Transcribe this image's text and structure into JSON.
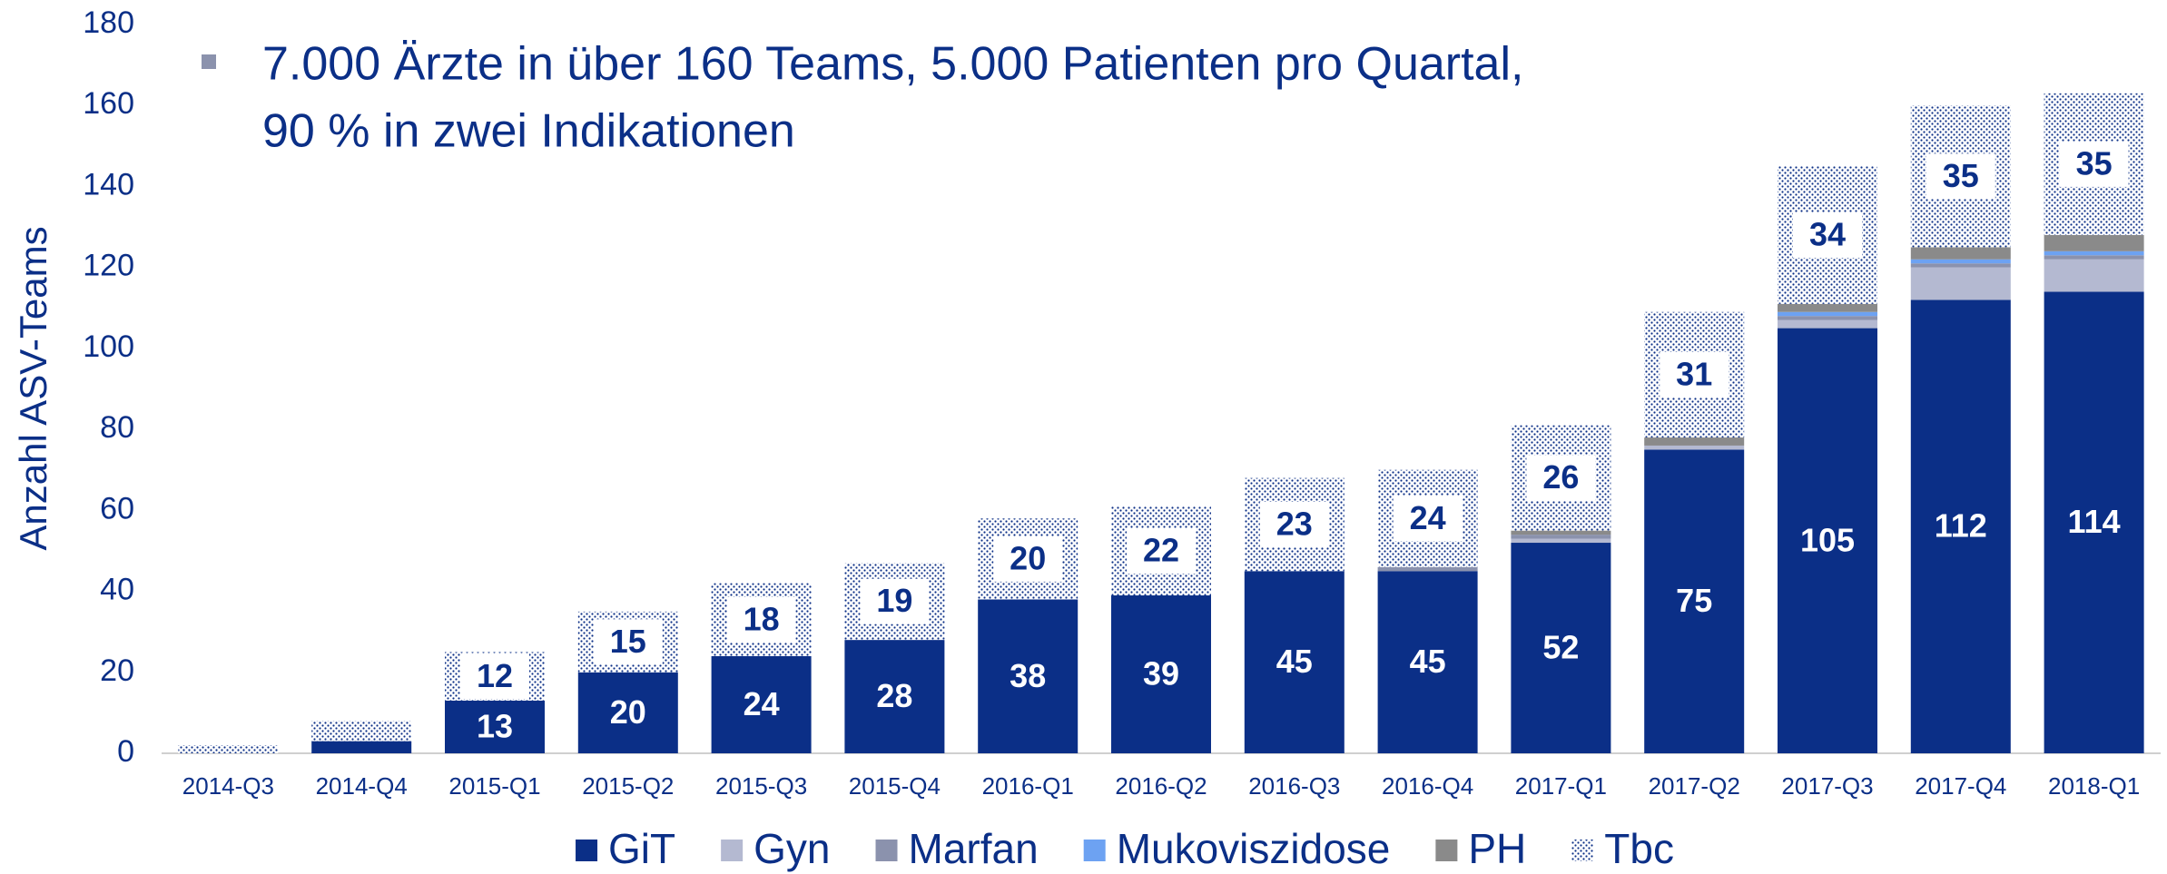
{
  "chart_data": {
    "type": "stacked_bar",
    "annotation": [
      "7.000 Ärzte in über 160 Teams, 5.000 Patienten pro Quartal,",
      "90 % in zwei Indikationen"
    ],
    "y_label": "Anzahl ASV-Teams",
    "categories": [
      "2014-Q3",
      "2014-Q4",
      "2015-Q1",
      "2015-Q2",
      "2015-Q3",
      "2015-Q4",
      "2016-Q1",
      "2016-Q2",
      "2016-Q3",
      "2016-Q4",
      "2017-Q1",
      "2017-Q2",
      "2017-Q3",
      "2017-Q4",
      "2018-Q1"
    ],
    "series": [
      {
        "name": "GiT",
        "color": "#0b2f87",
        "values": [
          0,
          3,
          13,
          20,
          24,
          28,
          38,
          39,
          45,
          45,
          52,
          75,
          105,
          112,
          114
        ],
        "value_labels": [
          null,
          null,
          "13",
          "20",
          "24",
          "28",
          "38",
          "39",
          "45",
          "45",
          "52",
          "75",
          "105",
          "112",
          "114"
        ]
      },
      {
        "name": "Gyn",
        "color": "#b4b9d1",
        "values": [
          0,
          0,
          0,
          0,
          0,
          0,
          0,
          0,
          0,
          0,
          1,
          1,
          2,
          8,
          8
        ]
      },
      {
        "name": "Marfan",
        "color": "#8b92ad",
        "values": [
          0,
          0,
          0,
          0,
          0,
          0,
          0,
          0,
          0,
          1,
          1,
          0,
          1,
          1,
          1
        ]
      },
      {
        "name": "Mukoviszidose",
        "color": "#6da2f2",
        "values": [
          0,
          0,
          0,
          0,
          0,
          0,
          0,
          0,
          0,
          0,
          0,
          0,
          1,
          1,
          1
        ]
      },
      {
        "name": "PH",
        "color": "#8a8a8a",
        "values": [
          0,
          0,
          0,
          0,
          0,
          0,
          0,
          0,
          0,
          0,
          1,
          2,
          2,
          3,
          4
        ]
      },
      {
        "name": "Tbc",
        "color": "#0b2f87",
        "pattern": "dots",
        "values": [
          2,
          5,
          12,
          15,
          18,
          19,
          20,
          22,
          23,
          24,
          26,
          31,
          34,
          35,
          35
        ],
        "value_labels": [
          null,
          null,
          "12",
          "15",
          "18",
          "19",
          "20",
          "22",
          "23",
          "24",
          "26",
          "31",
          "34",
          "35",
          "35"
        ]
      }
    ],
    "ylim": [
      0,
      180
    ],
    "yticks": [
      0,
      20,
      40,
      60,
      80,
      100,
      120,
      140,
      160,
      180
    ],
    "grid": false,
    "legend": "bottom"
  }
}
